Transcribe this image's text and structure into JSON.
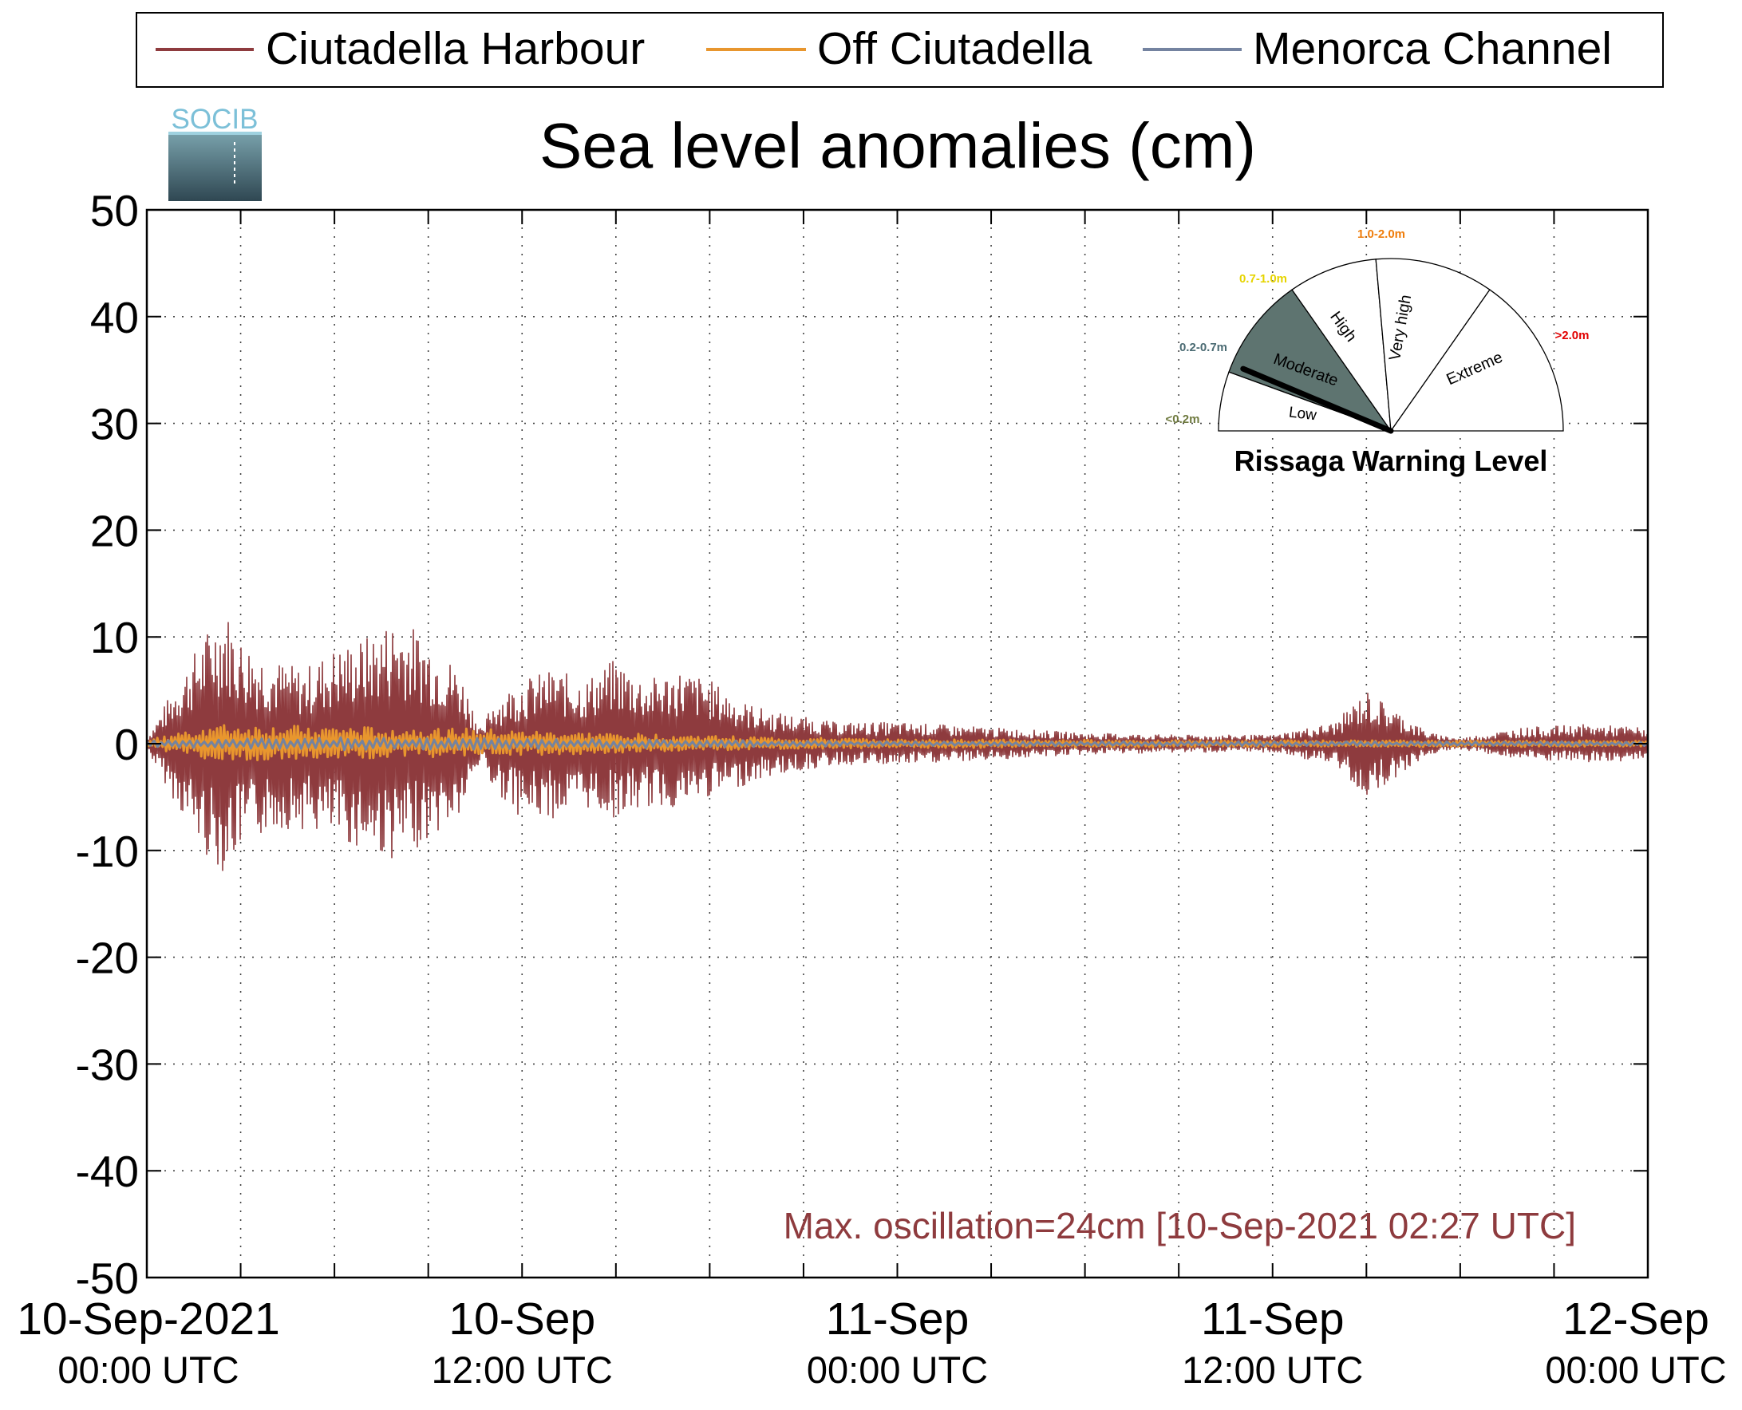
{
  "chart_data": {
    "type": "line",
    "title": "Sea level anomalies (cm)",
    "xlabel": "",
    "ylabel": "",
    "ylim": [
      -50,
      50
    ],
    "yticks": [
      50,
      40,
      30,
      20,
      10,
      0,
      -10,
      -20,
      -30,
      -40,
      -50
    ],
    "ytick_labels": [
      "50",
      "40",
      "30",
      "20",
      "10",
      "0",
      "-10",
      "-20",
      "-30",
      "-40",
      "-50"
    ],
    "xlim": [
      "2021-09-10T00:00Z",
      "2021-09-12T00:00Z"
    ],
    "x_labels": [
      {
        "x": "2021-09-10T00:00Z",
        "date": "10-Sep-2021",
        "time": "00:00 UTC"
      },
      {
        "x": "2021-09-10T12:00Z",
        "date": "10-Sep",
        "time": "12:00 UTC"
      },
      {
        "x": "2021-09-11T00:00Z",
        "date": "11-Sep",
        "time": "00:00 UTC"
      },
      {
        "x": "2021-09-11T12:00Z",
        "date": "11-Sep",
        "time": "12:00 UTC"
      },
      {
        "x": "2021-09-12T00:00Z",
        "date": "12-Sep",
        "time": "00:00 UTC"
      }
    ],
    "grid": true,
    "legend_position": "top",
    "series": [
      {
        "name": "Ciutadella Harbour",
        "color": "#8e3b3e",
        "kind": "oscillation envelope",
        "x": [
          "2021-09-10T00:00Z",
          "2021-09-10T01:00Z",
          "2021-09-10T02:00Z",
          "2021-09-10T02:27Z",
          "2021-09-10T03:00Z",
          "2021-09-10T04:00Z",
          "2021-09-10T05:00Z",
          "2021-09-10T06:00Z",
          "2021-09-10T07:00Z",
          "2021-09-10T08:00Z",
          "2021-09-10T09:00Z",
          "2021-09-10T10:00Z",
          "2021-09-10T10:45Z",
          "2021-09-10T11:00Z",
          "2021-09-10T12:00Z",
          "2021-09-10T13:00Z",
          "2021-09-10T14:00Z",
          "2021-09-10T15:00Z",
          "2021-09-10T16:00Z",
          "2021-09-10T17:00Z",
          "2021-09-10T18:00Z",
          "2021-09-10T19:00Z",
          "2021-09-10T20:00Z",
          "2021-09-10T22:00Z",
          "2021-09-11T00:00Z",
          "2021-09-11T03:00Z",
          "2021-09-11T06:00Z",
          "2021-09-11T09:00Z",
          "2021-09-11T12:00Z",
          "2021-09-11T14:00Z",
          "2021-09-11T15:00Z",
          "2021-09-11T16:00Z",
          "2021-09-11T17:00Z",
          "2021-09-11T18:00Z",
          "2021-09-11T20:00Z",
          "2021-09-11T22:00Z",
          "2021-09-12T00:00Z"
        ],
        "upper": [
          0.5,
          6,
          11,
          13,
          10,
          8,
          7,
          9,
          10,
          12,
          10,
          7,
          1,
          4,
          6,
          7,
          6,
          8,
          6,
          7,
          6,
          4,
          3,
          2,
          2,
          1.5,
          1,
          0.8,
          0.8,
          2,
          5,
          3,
          1,
          0.5,
          1.5,
          1.8,
          1.5
        ],
        "lower": [
          -0.5,
          -6,
          -11,
          -12,
          -10,
          -8,
          -8,
          -9,
          -10,
          -11,
          -9,
          -7,
          -1,
          -4,
          -7,
          -7,
          -6,
          -7,
          -6,
          -6,
          -5,
          -4,
          -3,
          -2,
          -2,
          -1.5,
          -1,
          -0.8,
          -0.8,
          -2,
          -5,
          -3,
          -1,
          -0.5,
          -1.5,
          -1.8,
          -1.5
        ]
      },
      {
        "name": "Off Ciutadella",
        "color": "#e8962e",
        "kind": "oscillation envelope",
        "x": [
          "2021-09-10T00:00Z",
          "2021-09-10T02:00Z",
          "2021-09-10T06:00Z",
          "2021-09-10T10:30Z",
          "2021-09-10T12:00Z",
          "2021-09-10T16:00Z",
          "2021-09-10T20:00Z",
          "2021-09-11T00:00Z",
          "2021-09-11T12:00Z",
          "2021-09-12T00:00Z"
        ],
        "upper": [
          0.3,
          1.8,
          1.6,
          1.4,
          1.2,
          0.9,
          0.6,
          0.4,
          0.3,
          0.3
        ],
        "lower": [
          -0.3,
          -1.6,
          -1.4,
          -1.2,
          -1.1,
          -0.8,
          -0.5,
          -0.4,
          -0.3,
          -0.3
        ]
      },
      {
        "name": "Menorca Channel",
        "color": "#7483a0",
        "kind": "oscillation envelope",
        "x": [
          "2021-09-10T00:00Z",
          "2021-09-10T06:00Z",
          "2021-09-10T12:00Z",
          "2021-09-10T20:00Z",
          "2021-09-11T00:00Z",
          "2021-09-12T00:00Z"
        ],
        "upper": [
          0.3,
          0.6,
          0.5,
          0.3,
          0.2,
          0.2
        ],
        "lower": [
          -0.3,
          -0.6,
          -0.5,
          -0.3,
          -0.2,
          -0.2
        ]
      }
    ],
    "annotation": {
      "text": "Max. oscillation=24cm [10-Sep-2021 02:27 UTC]",
      "color": "#8e3b3e"
    }
  },
  "logo": {
    "text": "SOCIB"
  },
  "gauge": {
    "title": "Rissaga Warning Level",
    "value_m": 0.24,
    "sectors": [
      {
        "name": "Low",
        "range": "<0.2m",
        "range_color": "#6f7a3f",
        "active": false
      },
      {
        "name": "Moderate",
        "range": "0.2-0.7m",
        "range_color": "#4b6b73",
        "active": true,
        "fill": "#5e7470"
      },
      {
        "name": "High",
        "range": "0.7-1.0m",
        "range_color": "#e6d400",
        "active": false
      },
      {
        "name": "Very high",
        "range": "1.0-2.0m",
        "range_color": "#ef7d0b",
        "active": false
      },
      {
        "name": "Extreme",
        "range": ">2.0m",
        "range_color": "#e10000",
        "active": false
      }
    ]
  }
}
